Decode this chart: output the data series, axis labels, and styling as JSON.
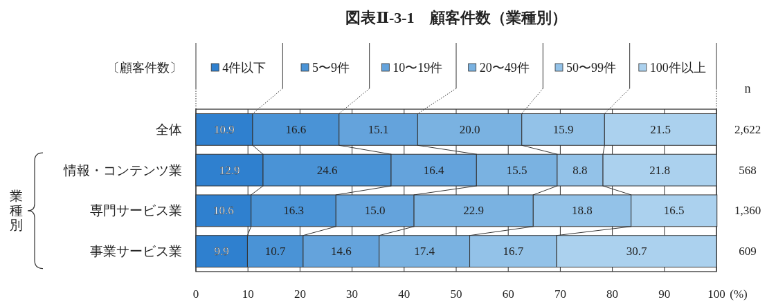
{
  "chart_data": {
    "type": "bar",
    "orientation": "horizontal",
    "stacked": true,
    "title": "図表Ⅱ-3-1　顧客件数（業種別）",
    "legend_title": "〔顧客件数〕",
    "legend": "top",
    "xlabel": "(%)",
    "categories": [
      "全体",
      "情報・コンテンツ業",
      "専門サービス業",
      "事業サービス業"
    ],
    "series": [
      {
        "name": "4件以下",
        "color": "#2f80cf",
        "values": [
          10.9,
          12.9,
          10.6,
          9.9
        ],
        "value_labels": [
          "10.9",
          "12.9",
          "10.6",
          "9.9"
        ]
      },
      {
        "name": "5〜9件",
        "color": "#4a93d6",
        "values": [
          16.6,
          24.6,
          16.3,
          10.7
        ],
        "value_labels": [
          "16.6",
          "24.6",
          "16.3",
          "10.7"
        ]
      },
      {
        "name": "10〜19件",
        "color": "#64a3dc",
        "values": [
          15.1,
          16.4,
          15.0,
          14.6
        ],
        "value_labels": [
          "15.1",
          "16.4",
          "15.0",
          "14.6"
        ]
      },
      {
        "name": "20〜49件",
        "color": "#7ab2e1",
        "values": [
          20.0,
          15.5,
          22.9,
          17.4
        ],
        "value_labels": [
          "20.0",
          "15.5",
          "22.9",
          "17.4"
        ]
      },
      {
        "name": "50〜99件",
        "color": "#93c2e8",
        "values": [
          15.9,
          8.8,
          18.8,
          16.7
        ],
        "value_labels": [
          "15.9",
          "8.8",
          "18.8",
          "16.7"
        ]
      },
      {
        "name": "100件以上",
        "color": "#abd1ee",
        "values": [
          21.5,
          21.8,
          16.5,
          30.7
        ],
        "value_labels": [
          "21.5",
          "21.8",
          "16.5",
          "30.7"
        ]
      }
    ],
    "xlim": [
      0,
      100
    ],
    "xticks": [
      0,
      10,
      20,
      30,
      40,
      50,
      60,
      70,
      80,
      90,
      100
    ],
    "grid": "x",
    "annotations": [
      "n",
      "2,622",
      "568",
      "1,360",
      "609",
      "業種別"
    ]
  }
}
